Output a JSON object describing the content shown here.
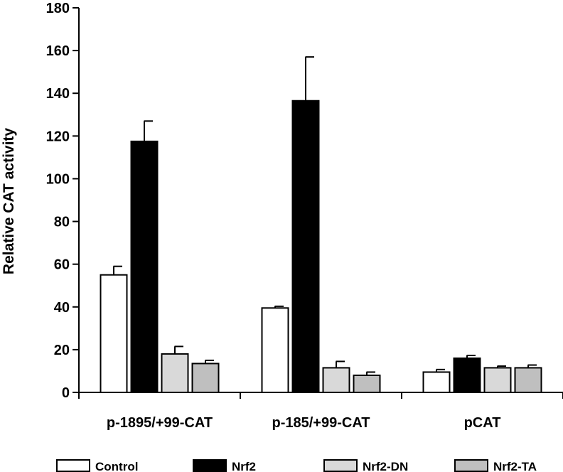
{
  "chart_data": {
    "type": "bar",
    "categories": [
      "p-1895/+99-CAT",
      "p-185/+99-CAT",
      "pCAT"
    ],
    "series": [
      {
        "name": "Control",
        "color": "#ffffff",
        "values": [
          55,
          39.5,
          9.5
        ],
        "errors": [
          4,
          0.8,
          1.2
        ]
      },
      {
        "name": "Nrf2",
        "color": "#000000",
        "values": [
          117.5,
          136.5,
          16
        ],
        "errors": [
          9.5,
          20.5,
          1.3
        ]
      },
      {
        "name": "Nrf2-DN",
        "color": "#d9d9d9",
        "values": [
          18,
          11.5,
          11.5
        ],
        "errors": [
          3.5,
          3,
          0.8
        ]
      },
      {
        "name": "Nrf2-TA",
        "color": "#bfbfbf",
        "values": [
          13.5,
          8,
          11.5
        ],
        "errors": [
          1.5,
          1.5,
          1.3
        ]
      }
    ],
    "title": "",
    "xlabel": "",
    "ylabel": "Relative CAT activity",
    "ylim": [
      0,
      180
    ],
    "yticks": [
      0,
      20,
      40,
      60,
      80,
      100,
      120,
      140,
      160,
      180
    ],
    "grid": false,
    "legend_position": "bottom"
  }
}
